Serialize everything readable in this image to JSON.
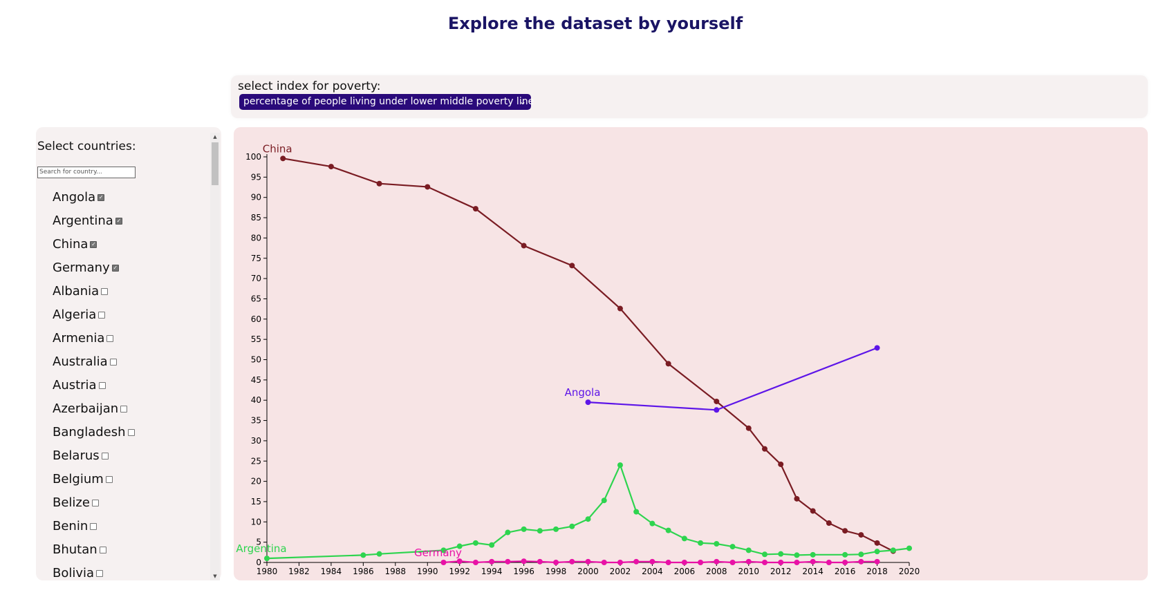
{
  "page": {
    "title": "Explore the dataset by yourself"
  },
  "index_selector": {
    "label": "select index for poverty:",
    "selected": "percentage of people living under lower middle poverty line",
    "chevron_icon": "chevron-down-icon"
  },
  "countries": {
    "heading": "Select countries:",
    "search_placeholder": "Search for country...",
    "items": [
      {
        "name": "Angola",
        "checked": true
      },
      {
        "name": "Argentina",
        "checked": true
      },
      {
        "name": "China",
        "checked": true
      },
      {
        "name": "Germany",
        "checked": true
      },
      {
        "name": "Albania",
        "checked": false
      },
      {
        "name": "Algeria",
        "checked": false
      },
      {
        "name": "Armenia",
        "checked": false
      },
      {
        "name": "Australia",
        "checked": false
      },
      {
        "name": "Austria",
        "checked": false
      },
      {
        "name": "Azerbaijan",
        "checked": false
      },
      {
        "name": "Bangladesh",
        "checked": false
      },
      {
        "name": "Belarus",
        "checked": false
      },
      {
        "name": "Belgium",
        "checked": false
      },
      {
        "name": "Belize",
        "checked": false
      },
      {
        "name": "Benin",
        "checked": false
      },
      {
        "name": "Bhutan",
        "checked": false
      },
      {
        "name": "Bolivia",
        "checked": false
      }
    ]
  },
  "chart_data": {
    "type": "line",
    "title": "",
    "xlabel": "",
    "ylabel": "",
    "xlim": [
      1980,
      2020
    ],
    "ylim": [
      0,
      100
    ],
    "x_ticks": [
      1980,
      1982,
      1984,
      1986,
      1988,
      1990,
      1992,
      1994,
      1996,
      1998,
      2000,
      2002,
      2004,
      2006,
      2008,
      2010,
      2012,
      2014,
      2016,
      2018,
      2020
    ],
    "y_ticks": [
      0,
      5,
      10,
      15,
      20,
      25,
      30,
      35,
      40,
      45,
      50,
      55,
      60,
      65,
      70,
      75,
      80,
      85,
      90,
      95,
      100
    ],
    "grid": false,
    "legend": "labels at series start",
    "series": [
      {
        "name": "China",
        "color": "#7a1c23",
        "x": [
          1981,
          1984,
          1987,
          1990,
          1993,
          1996,
          1999,
          2002,
          2005,
          2008,
          2010,
          2011,
          2012,
          2013,
          2014,
          2015,
          2016,
          2017,
          2018,
          2019
        ],
        "y": [
          99.6,
          97.6,
          93.4,
          92.6,
          87.2,
          78.1,
          73.2,
          62.6,
          49.0,
          39.7,
          33.1,
          28.0,
          24.2,
          15.7,
          12.7,
          9.7,
          7.8,
          6.8,
          4.8,
          2.8
        ]
      },
      {
        "name": "Angola",
        "color": "#5d15e8",
        "x": [
          2000,
          2008,
          2018
        ],
        "y": [
          39.5,
          37.6,
          52.9
        ]
      },
      {
        "name": "Argentina",
        "color": "#2ed44f",
        "x": [
          1980,
          1986,
          1987,
          1991,
          1992,
          1993,
          1994,
          1995,
          1996,
          1997,
          1998,
          1999,
          2000,
          2001,
          2002,
          2003,
          2004,
          2005,
          2006,
          2007,
          2008,
          2009,
          2010,
          2011,
          2012,
          2013,
          2014,
          2016,
          2017,
          2018,
          2019,
          2020
        ],
        "y": [
          1.0,
          1.8,
          2.1,
          3.0,
          4.0,
          4.8,
          4.3,
          7.4,
          8.2,
          7.8,
          8.2,
          8.9,
          10.7,
          15.3,
          24.0,
          12.5,
          9.6,
          7.9,
          5.9,
          4.8,
          4.6,
          3.9,
          3.0,
          2.0,
          2.1,
          1.8,
          1.9,
          1.9,
          2.0,
          2.7,
          3.0,
          3.5
        ]
      },
      {
        "name": "Germany",
        "color": "#e812a6",
        "x": [
          1991,
          1992,
          1993,
          1994,
          1995,
          1996,
          1997,
          1998,
          1999,
          2000,
          2001,
          2002,
          2003,
          2004,
          2005,
          2006,
          2007,
          2008,
          2009,
          2010,
          2011,
          2012,
          2013,
          2014,
          2015,
          2016,
          2017,
          2018
        ],
        "y": [
          0.0,
          0.3,
          0.0,
          0.2,
          0.2,
          0.3,
          0.2,
          0.0,
          0.2,
          0.2,
          0.0,
          0.0,
          0.2,
          0.2,
          0.0,
          0.0,
          0.0,
          0.2,
          0.0,
          0.2,
          0.0,
          0.0,
          0.0,
          0.2,
          0.0,
          0.0,
          0.2,
          0.2
        ]
      }
    ]
  }
}
